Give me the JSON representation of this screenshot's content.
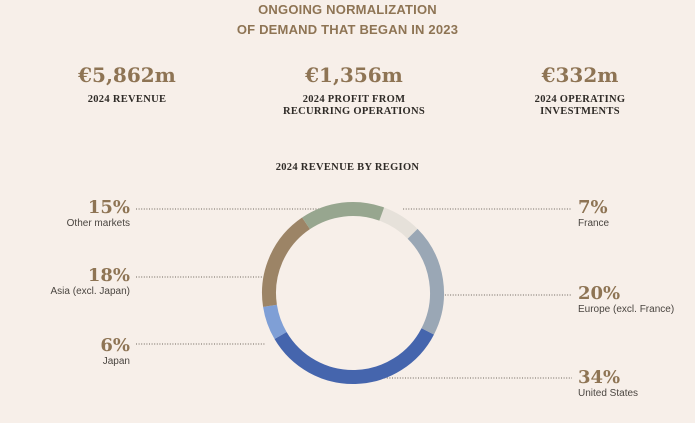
{
  "headline": {
    "line1": "ONGOING NORMALIZATION",
    "line2": "OF DEMAND THAT BEGAN IN 2023"
  },
  "kpis": [
    {
      "value": "€5,862m",
      "label_line1": "2024 REVENUE",
      "label_line2": ""
    },
    {
      "value": "€1,356m",
      "label_line1": "2024 PROFIT FROM",
      "label_line2": "RECURRING OPERATIONS"
    },
    {
      "value": "€332m",
      "label_line1": "2024 OPERATING",
      "label_line2": "INVESTMENTS"
    }
  ],
  "colors": {
    "background": "#f7efe9",
    "accent": "#8e7454"
  },
  "chart_data": {
    "type": "pie",
    "variant": "donut",
    "title": "2024 REVENUE BY REGION",
    "unit": "%",
    "slices": [
      {
        "label": "France",
        "value": 7,
        "display": "7%",
        "color": "#e6e1da"
      },
      {
        "label": "Europe (excl. France)",
        "value": 20,
        "display": "20%",
        "color": "#9aa7b5"
      },
      {
        "label": "United States",
        "value": 34,
        "display": "34%",
        "color": "#4565ad"
      },
      {
        "label": "Japan",
        "value": 6,
        "display": "6%",
        "color": "#7f9fd6"
      },
      {
        "label": "Asia (excl. Japan)",
        "value": 18,
        "display": "18%",
        "color": "#9c8466"
      },
      {
        "label": "Other markets",
        "value": 15,
        "display": "15%",
        "color": "#97a68f"
      }
    ]
  }
}
